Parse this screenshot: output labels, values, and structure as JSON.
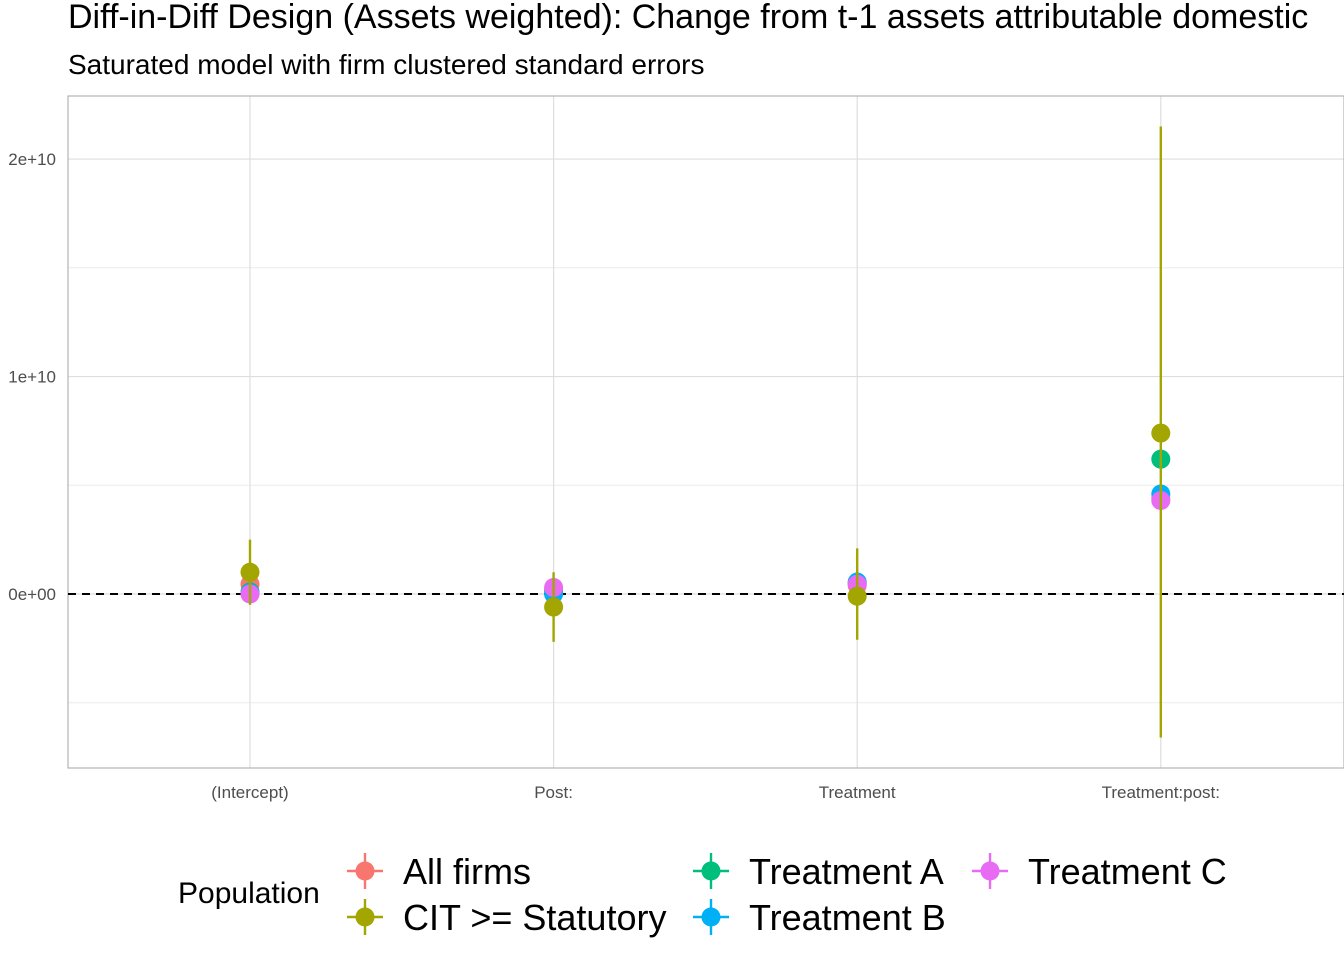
{
  "chart_data": {
    "type": "scatter",
    "title": "Diff-in-Diff Design (Assets weighted): Change from t-1 assets attributable domestic",
    "subtitle": "Saturated model with firm clustered standard errors",
    "xlabel": "",
    "ylabel": "",
    "categories": [
      "(Intercept)",
      "Post:",
      "Treatment",
      "Treatment:post:"
    ],
    "ylim": [
      -8000000000.0,
      22900000000.0
    ],
    "yticks": [
      0,
      10000000000,
      20000000000
    ],
    "ytick_labels": [
      "0e+00",
      "1e+10",
      "2e+10"
    ],
    "reference_line": 0,
    "grid": true,
    "legend": {
      "title": "Population",
      "position": "bottom"
    },
    "series": [
      {
        "name": "All firms",
        "color": "#F8766D",
        "values": [
          450000000.0,
          200000000.0,
          400000000.0,
          4400000000.0
        ],
        "lower": [
          450000000.0,
          200000000.0,
          400000000.0,
          4400000000.0
        ],
        "upper": [
          450000000.0,
          200000000.0,
          400000000.0,
          4400000000.0
        ]
      },
      {
        "name": "Treatment A",
        "color": "#00BF7D",
        "values": [
          100000000.0,
          100000000.0,
          500000000.0,
          6200000000.0
        ],
        "lower": [
          100000000.0,
          100000000.0,
          500000000.0,
          6200000000.0
        ],
        "upper": [
          100000000.0,
          100000000.0,
          500000000.0,
          6200000000.0
        ]
      },
      {
        "name": "Treatment B",
        "color": "#00B0F6",
        "values": [
          50000000.0,
          0.0,
          550000000.0,
          4600000000.0
        ],
        "lower": [
          50000000.0,
          0.0,
          550000000.0,
          4600000000.0
        ],
        "upper": [
          50000000.0,
          0.0,
          550000000.0,
          4600000000.0
        ]
      },
      {
        "name": "Treatment C",
        "color": "#E76BF3",
        "values": [
          0.0,
          300000000.0,
          450000000.0,
          4300000000.0
        ],
        "lower": [
          0.0,
          300000000.0,
          450000000.0,
          4300000000.0
        ],
        "upper": [
          0.0,
          300000000.0,
          450000000.0,
          4300000000.0
        ]
      },
      {
        "name": "CIT >= Statutory",
        "color": "#A3A500",
        "values": [
          1000000000.0,
          -600000000.0,
          -100000000.0,
          7400000000.0
        ],
        "lower": [
          -500000000.0,
          -2200000000.0,
          -2100000000.0,
          -6600000000.0
        ],
        "upper": [
          2500000000.0,
          1000000000.0,
          2100000000.0,
          21500000000.0
        ]
      }
    ],
    "legend_order": [
      "All firms",
      "CIT >= Statutory",
      "Treatment A",
      "Treatment B",
      "Treatment C"
    ]
  }
}
